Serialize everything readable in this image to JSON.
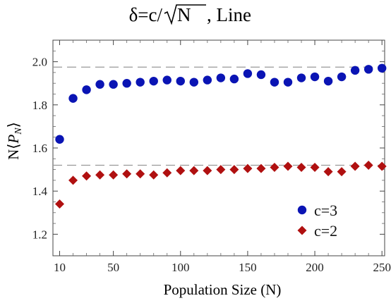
{
  "chart_data": {
    "type": "scatter",
    "title_prefix": "δ=c/",
    "title_radicand": "N",
    "title_suffix": ", Line",
    "xlabel": "Population Size (N)",
    "ylabel_prefix": "N⟨",
    "ylabel_var": "P",
    "ylabel_sub": "N",
    "ylabel_suffix": "⟩",
    "xlim": [
      5,
      252
    ],
    "ylim": [
      1.1,
      2.1
    ],
    "xticks": [
      {
        "v": 10,
        "label": "10"
      },
      {
        "v": 50,
        "label": "50"
      },
      {
        "v": 100,
        "label": "100"
      },
      {
        "v": 150,
        "label": "150"
      },
      {
        "v": 200,
        "label": "200"
      },
      {
        "v": 250,
        "label": "250"
      }
    ],
    "xminor": [
      20,
      30,
      40,
      60,
      70,
      80,
      90,
      110,
      120,
      130,
      140,
      160,
      170,
      180,
      190,
      210,
      220,
      230,
      240
    ],
    "yticks": [
      {
        "v": 1.2,
        "label": "1.2"
      },
      {
        "v": 1.4,
        "label": "1.4"
      },
      {
        "v": 1.6,
        "label": "1.6"
      },
      {
        "v": 1.8,
        "label": "1.8"
      },
      {
        "v": 2.0,
        "label": "2.0"
      }
    ],
    "yminor": [
      1.25,
      1.3,
      1.35,
      1.45,
      1.5,
      1.55,
      1.65,
      1.7,
      1.75,
      1.85,
      1.9,
      1.95,
      2.05
    ],
    "reference_lines": [
      1.975,
      1.52
    ],
    "x": [
      10,
      20,
      30,
      40,
      50,
      60,
      70,
      80,
      90,
      100,
      110,
      120,
      130,
      140,
      150,
      160,
      170,
      180,
      190,
      200,
      210,
      220,
      230,
      240,
      250
    ],
    "series": [
      {
        "name": "c=3",
        "marker": "circle",
        "color": "#0a14b4",
        "values": [
          1.64,
          1.83,
          1.87,
          1.895,
          1.895,
          1.9,
          1.905,
          1.91,
          1.915,
          1.91,
          1.905,
          1.915,
          1.925,
          1.92,
          1.945,
          1.94,
          1.905,
          1.905,
          1.925,
          1.93,
          1.91,
          1.93,
          1.96,
          1.965,
          1.97
        ]
      },
      {
        "name": "c=2",
        "marker": "diamond",
        "color": "#b01010",
        "values": [
          1.34,
          1.45,
          1.47,
          1.475,
          1.475,
          1.48,
          1.48,
          1.475,
          1.485,
          1.495,
          1.495,
          1.495,
          1.5,
          1.5,
          1.505,
          1.505,
          1.51,
          1.515,
          1.51,
          1.51,
          1.49,
          1.49,
          1.515,
          1.52,
          1.515
        ]
      }
    ],
    "legend_position": "bottom-right"
  }
}
